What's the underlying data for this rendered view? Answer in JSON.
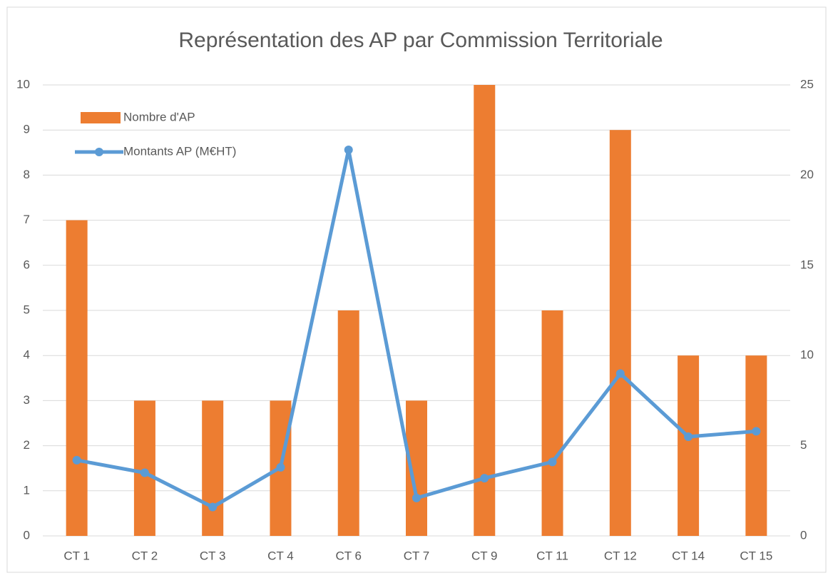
{
  "chart_data": {
    "type": "bar-line",
    "title": "Représentation des AP par Commission Territoriale",
    "categories": [
      "CT 1",
      "CT 2",
      "CT 3",
      "CT 4",
      "CT 6",
      "CT 7",
      "CT 9",
      "CT 11",
      "CT 12",
      "CT 14",
      "CT 15"
    ],
    "series": [
      {
        "name": "Nombre d'AP",
        "type": "bar",
        "color": "#ed7d31",
        "values": [
          7,
          3,
          3,
          3,
          5,
          3,
          10,
          5,
          9,
          4,
          4
        ]
      },
      {
        "name": "Montants AP (M€HT)",
        "type": "line",
        "axis": "y2",
        "color": "#5b9bd5",
        "values": [
          4.2,
          3.5,
          1.6,
          3.8,
          21.4,
          2.1,
          3.2,
          4.1,
          9.0,
          5.5,
          5.8
        ]
      }
    ],
    "ylim": [
      0,
      10
    ],
    "yticks": [
      0,
      1,
      2,
      3,
      4,
      5,
      6,
      7,
      8,
      9,
      10
    ],
    "y2lim": [
      0,
      25
    ],
    "y2ticks": [
      0,
      5,
      10,
      15,
      20,
      25
    ],
    "grid": true,
    "legend": "top-left"
  }
}
